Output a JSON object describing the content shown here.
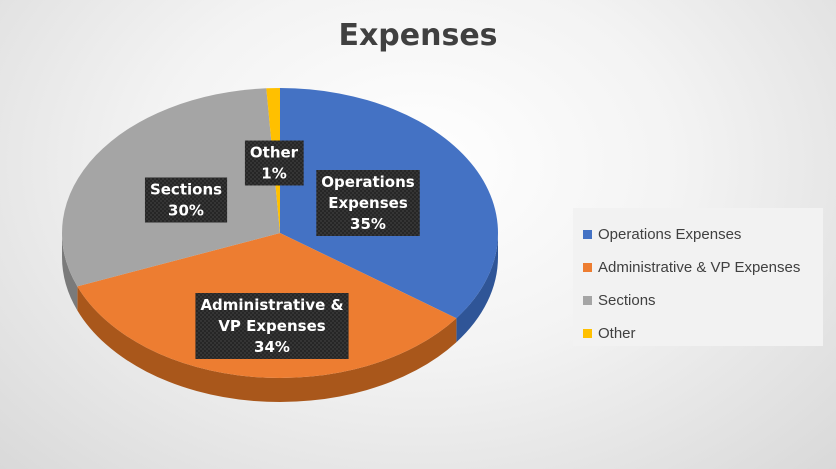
{
  "chart_data": {
    "type": "pie",
    "title": "Expenses",
    "categories": [
      "Operations Expenses",
      "Administrative & VP Expenses",
      "Sections",
      "Other"
    ],
    "values": [
      35,
      34,
      30,
      1
    ],
    "colors": [
      "#4472c4",
      "#ed7d31",
      "#a5a5a5",
      "#ffc000"
    ],
    "side_colors": [
      "#2f5597",
      "#a9571b",
      "#7a7a7a",
      "#bf9000"
    ],
    "data_labels": [
      {
        "lines": [
          "Operations",
          "Expenses",
          "35%"
        ]
      },
      {
        "lines": [
          "Administrative &",
          "VP Expenses",
          "34%"
        ]
      },
      {
        "lines": [
          "Sections",
          "30%"
        ]
      },
      {
        "lines": [
          "Other",
          "1%"
        ]
      }
    ],
    "legend": {
      "position": "right",
      "entries": [
        "Operations Expenses",
        "Administrative & VP Expenses",
        "Sections",
        "Other"
      ]
    },
    "style": "3d-pie"
  }
}
